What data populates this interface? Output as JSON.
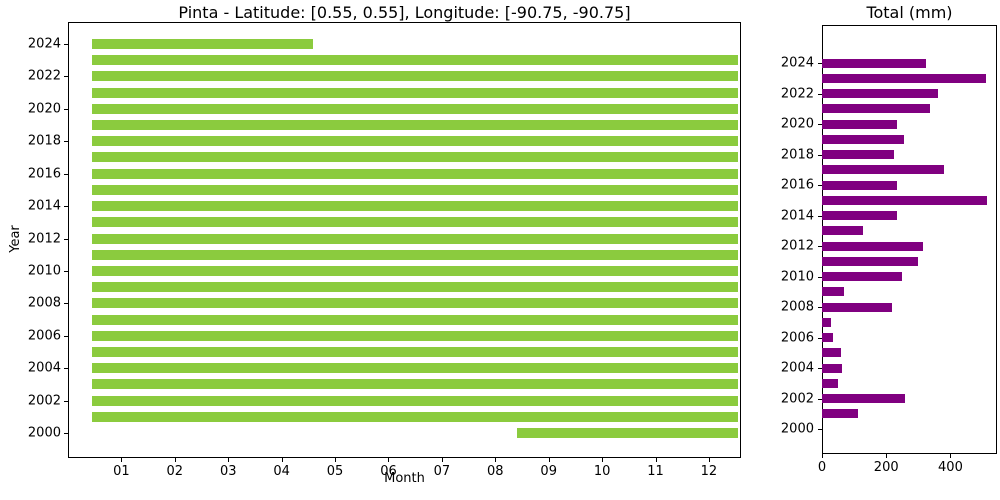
{
  "chart_data": [
    {
      "type": "bar",
      "subtype": "data-coverage-spans",
      "orientation": "horizontal",
      "title": "Pinta - Latitude: [0.55, 0.55], Longitude: [-90.75, -90.75]",
      "xlabel": "Month",
      "ylabel": "Year",
      "bar_color": "#8bcb3e",
      "xlim": [
        0,
        12.6
      ],
      "grid": false,
      "x_ticks": [
        {
          "value": 1,
          "label": "01"
        },
        {
          "value": 2,
          "label": "02"
        },
        {
          "value": 3,
          "label": "03"
        },
        {
          "value": 4,
          "label": "04"
        },
        {
          "value": 5,
          "label": "05"
        },
        {
          "value": 6,
          "label": "06"
        },
        {
          "value": 7,
          "label": "07"
        },
        {
          "value": 8,
          "label": "08"
        },
        {
          "value": 9,
          "label": "09"
        },
        {
          "value": 10,
          "label": "10"
        },
        {
          "value": 11,
          "label": "11"
        },
        {
          "value": 12,
          "label": "12"
        }
      ],
      "y_ticks": [
        {
          "value": 2000,
          "label": "2000"
        },
        {
          "value": 2002,
          "label": "2002"
        },
        {
          "value": 2004,
          "label": "2004"
        },
        {
          "value": 2006,
          "label": "2006"
        },
        {
          "value": 2008,
          "label": "2008"
        },
        {
          "value": 2010,
          "label": "2010"
        },
        {
          "value": 2012,
          "label": "2012"
        },
        {
          "value": 2014,
          "label": "2014"
        },
        {
          "value": 2016,
          "label": "2016"
        },
        {
          "value": 2018,
          "label": "2018"
        },
        {
          "value": 2020,
          "label": "2020"
        },
        {
          "value": 2022,
          "label": "2022"
        },
        {
          "value": 2024,
          "label": "2024"
        }
      ],
      "bars": [
        {
          "year": 2000,
          "start": 8.4,
          "end": 12.55
        },
        {
          "year": 2001,
          "start": 0.45,
          "end": 12.55
        },
        {
          "year": 2002,
          "start": 0.45,
          "end": 12.55
        },
        {
          "year": 2003,
          "start": 0.45,
          "end": 12.55
        },
        {
          "year": 2004,
          "start": 0.45,
          "end": 12.55
        },
        {
          "year": 2005,
          "start": 0.45,
          "end": 12.55
        },
        {
          "year": 2006,
          "start": 0.45,
          "end": 12.55
        },
        {
          "year": 2007,
          "start": 0.45,
          "end": 12.55
        },
        {
          "year": 2008,
          "start": 0.45,
          "end": 12.55
        },
        {
          "year": 2009,
          "start": 0.45,
          "end": 12.55
        },
        {
          "year": 2010,
          "start": 0.45,
          "end": 12.55
        },
        {
          "year": 2011,
          "start": 0.45,
          "end": 12.55
        },
        {
          "year": 2012,
          "start": 0.45,
          "end": 12.55
        },
        {
          "year": 2013,
          "start": 0.45,
          "end": 12.55
        },
        {
          "year": 2014,
          "start": 0.45,
          "end": 12.55
        },
        {
          "year": 2015,
          "start": 0.45,
          "end": 12.55
        },
        {
          "year": 2016,
          "start": 0.45,
          "end": 12.55
        },
        {
          "year": 2017,
          "start": 0.45,
          "end": 12.55
        },
        {
          "year": 2018,
          "start": 0.45,
          "end": 12.55
        },
        {
          "year": 2019,
          "start": 0.45,
          "end": 12.55
        },
        {
          "year": 2020,
          "start": 0.45,
          "end": 12.55
        },
        {
          "year": 2021,
          "start": 0.45,
          "end": 12.55
        },
        {
          "year": 2022,
          "start": 0.45,
          "end": 12.55
        },
        {
          "year": 2023,
          "start": 0.45,
          "end": 12.55
        },
        {
          "year": 2024,
          "start": 0.45,
          "end": 4.58
        }
      ]
    },
    {
      "type": "bar",
      "orientation": "horizontal",
      "title": "Total (mm)",
      "bar_color": "#800080",
      "xlim": [
        0,
        545
      ],
      "grid": false,
      "x_ticks": [
        {
          "value": 0,
          "label": "0"
        },
        {
          "value": 200,
          "label": "200"
        },
        {
          "value": 400,
          "label": "400"
        }
      ],
      "y_ticks": [
        {
          "value": 2000,
          "label": "2000"
        },
        {
          "value": 2002,
          "label": "2002"
        },
        {
          "value": 2004,
          "label": "2004"
        },
        {
          "value": 2006,
          "label": "2006"
        },
        {
          "value": 2008,
          "label": "2008"
        },
        {
          "value": 2010,
          "label": "2010"
        },
        {
          "value": 2012,
          "label": "2012"
        },
        {
          "value": 2014,
          "label": "2014"
        },
        {
          "value": 2016,
          "label": "2016"
        },
        {
          "value": 2018,
          "label": "2018"
        },
        {
          "value": 2020,
          "label": "2020"
        },
        {
          "value": 2022,
          "label": "2022"
        },
        {
          "value": 2024,
          "label": "2024"
        }
      ],
      "categories": [
        2000,
        2001,
        2002,
        2003,
        2004,
        2005,
        2006,
        2007,
        2008,
        2009,
        2010,
        2011,
        2012,
        2013,
        2014,
        2015,
        2016,
        2017,
        2018,
        2019,
        2020,
        2021,
        2022,
        2023,
        2024
      ],
      "values": [
        0,
        112,
        260,
        51,
        61,
        59,
        34,
        28,
        217,
        70,
        250,
        299,
        314,
        128,
        233,
        515,
        233,
        379,
        224,
        255,
        233,
        335,
        360,
        512,
        323
      ]
    }
  ]
}
